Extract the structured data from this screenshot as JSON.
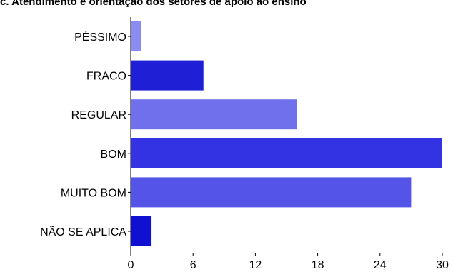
{
  "chart_data": {
    "type": "bar",
    "orientation": "horizontal",
    "title": "c. Atendimento e orientação dos setores de apoio ao ensino",
    "xlabel": "",
    "ylabel": "",
    "categories": [
      "PÉSSIMO",
      "FRACO",
      "REGULAR",
      "BOM",
      "MUITO BOM",
      "NÃO SE APLICA"
    ],
    "values": [
      1,
      7,
      16,
      30,
      27,
      2
    ],
    "bar_colors": [
      "#8c8cf0",
      "#1f1fd6",
      "#7070ec",
      "#3333e4",
      "#5454e8",
      "#1010d2"
    ],
    "xlim": [
      0,
      30
    ],
    "x_ticks": [
      "0",
      "6",
      "12",
      "18",
      "24",
      "30"
    ],
    "grid": false,
    "legend": "none"
  }
}
